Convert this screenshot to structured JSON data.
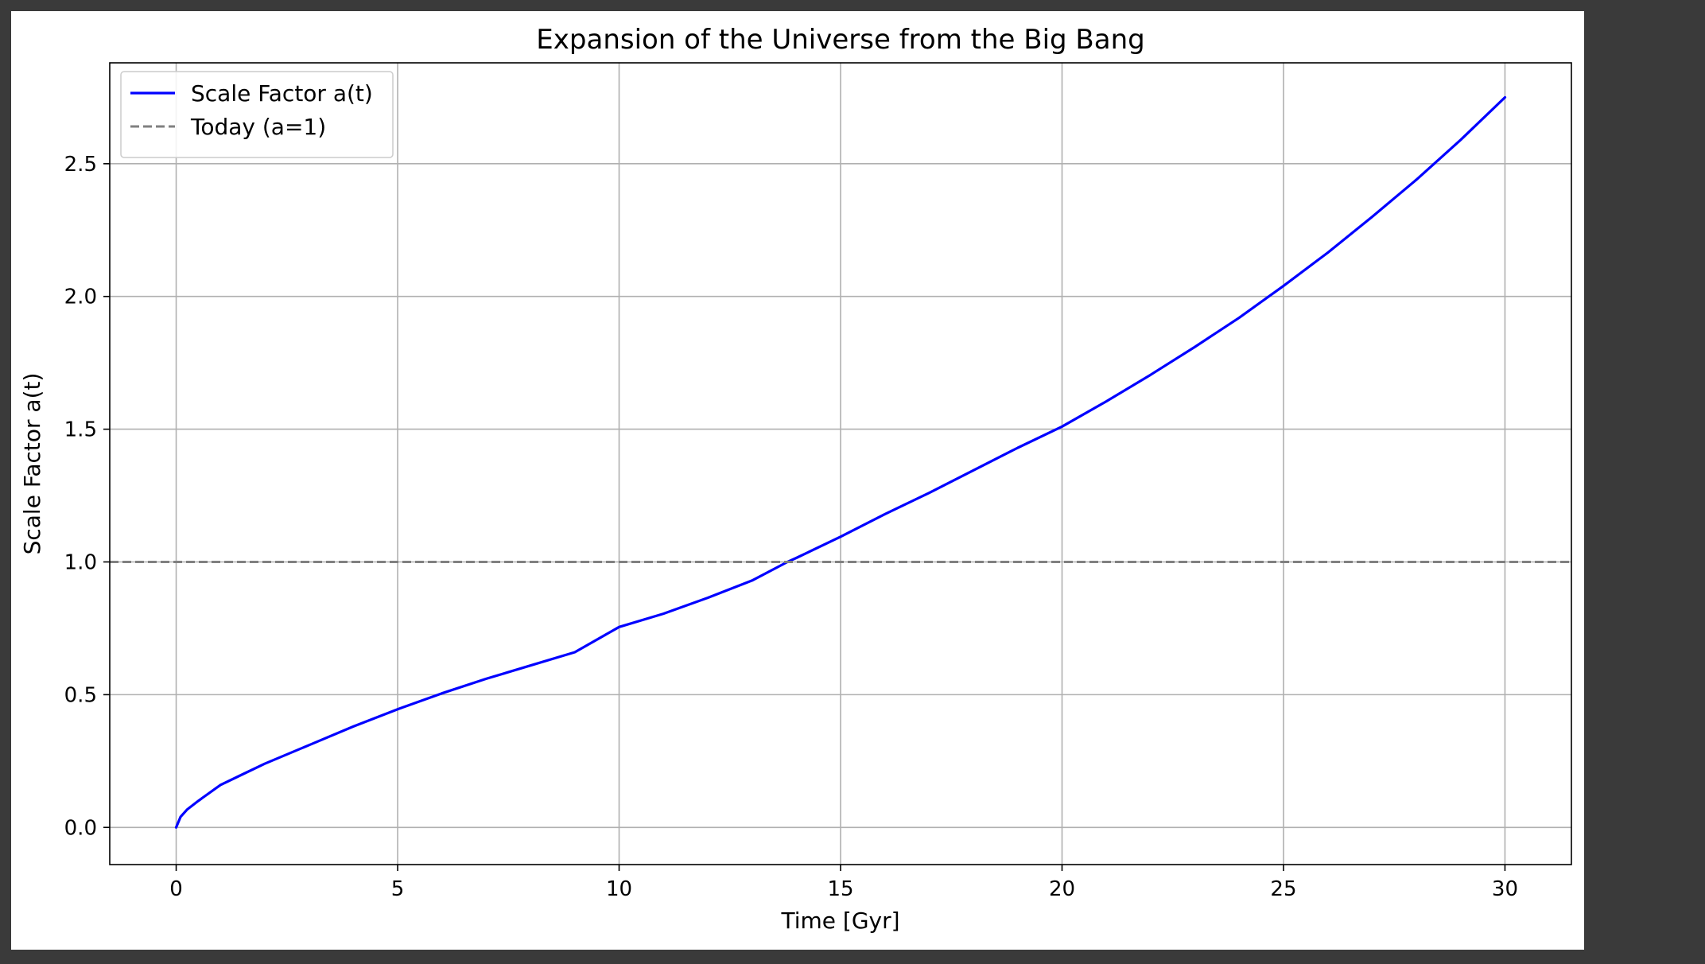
{
  "chart_data": {
    "type": "line",
    "title": "Expansion of the Universe from the Big Bang",
    "xlabel": "Time [Gyr]",
    "ylabel": "Scale Factor a(t)",
    "xlim": [
      -1.5,
      31.5
    ],
    "ylim": [
      -0.14,
      2.88
    ],
    "xticks": [
      0,
      5,
      10,
      15,
      20,
      25,
      30
    ],
    "yticks": [
      0.0,
      0.5,
      1.0,
      1.5,
      2.0,
      2.5
    ],
    "xtick_labels": [
      "0",
      "5",
      "10",
      "15",
      "20",
      "25",
      "30"
    ],
    "ytick_labels": [
      "0.0",
      "0.5",
      "1.0",
      "1.5",
      "2.0",
      "2.5"
    ],
    "grid": true,
    "legend_position": "top-left",
    "series": [
      {
        "name": "Scale Factor a(t)",
        "style": "solid",
        "color": "#0000ff",
        "x": [
          0,
          0.1,
          0.25,
          0.5,
          1,
          1.5,
          2,
          3,
          4,
          5,
          6,
          7,
          8,
          9,
          10,
          11,
          12,
          13,
          13.8,
          14,
          15,
          16,
          17,
          18,
          19,
          20,
          21,
          22,
          23,
          24,
          25,
          26,
          27,
          28,
          29,
          30
        ],
        "y": [
          0.0,
          0.04,
          0.068,
          0.1,
          0.16,
          0.2,
          0.24,
          0.31,
          0.38,
          0.445,
          0.505,
          0.56,
          0.61,
          0.66,
          0.755,
          0.805,
          0.865,
          0.93,
          1.0,
          1.015,
          1.095,
          1.18,
          1.26,
          1.345,
          1.43,
          1.51,
          1.605,
          1.705,
          1.81,
          1.92,
          2.04,
          2.165,
          2.3,
          2.44,
          2.59,
          2.75
        ]
      },
      {
        "name": "Today (a=1)",
        "style": "dashed",
        "color": "#808080",
        "y_constant": 1.0
      }
    ]
  }
}
